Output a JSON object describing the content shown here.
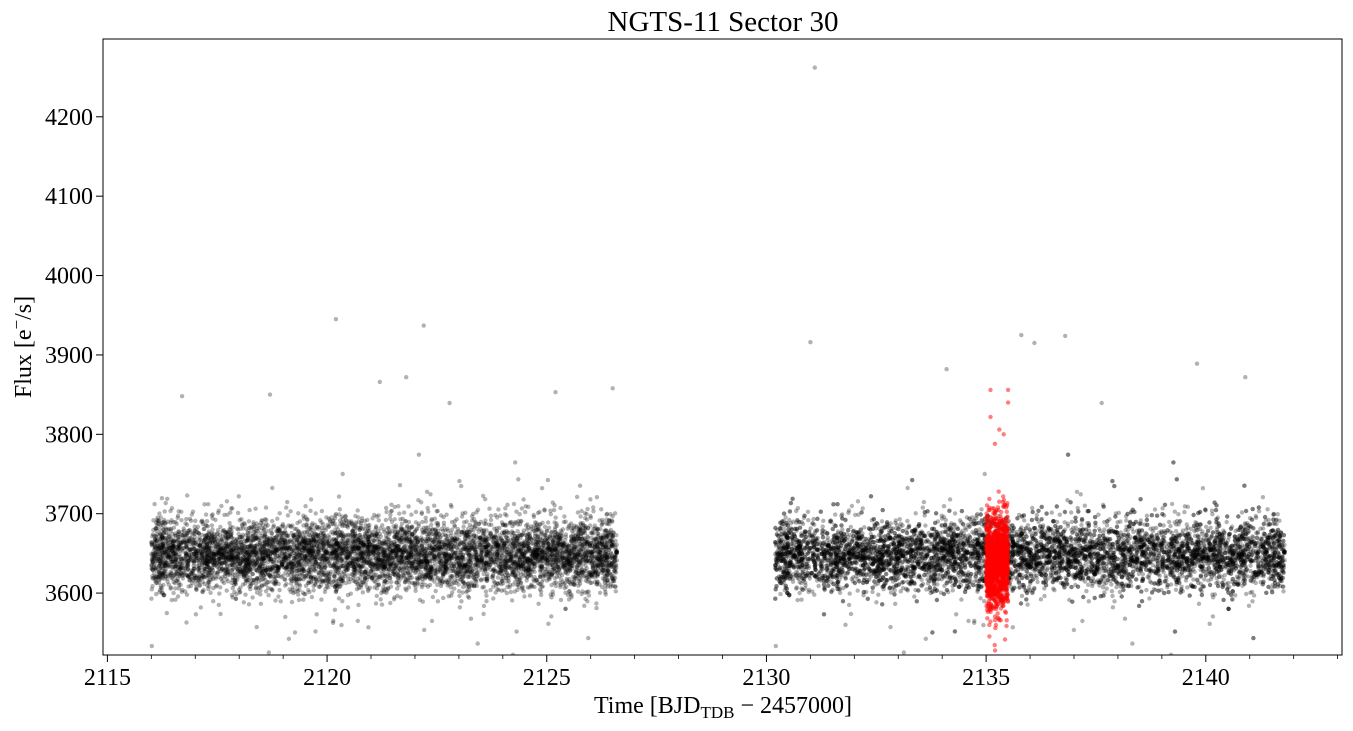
{
  "chart_data": {
    "type": "scatter",
    "title": "NGTS-11 Sector 30",
    "xlabel": {
      "prefix": "Time [BJD",
      "subscript": "TDB",
      "suffix": " − 2457000]"
    },
    "ylabel": {
      "prefix": "Flux [e",
      "superscript": "−",
      "suffix": "/s]"
    },
    "xlim": [
      2114.9,
      2143.1
    ],
    "ylim": [
      3522,
      4298
    ],
    "x_ticks": [
      2115,
      2120,
      2125,
      2130,
      2135,
      2140
    ],
    "x_tick_labels": [
      "2115",
      "2120",
      "2125",
      "2130",
      "2135",
      "2140"
    ],
    "x_minor_step": 1,
    "y_ticks": [
      3600,
      3700,
      3800,
      3900,
      4000,
      4100,
      4200
    ],
    "y_tick_labels": [
      "3600",
      "3700",
      "3800",
      "3900",
      "4000",
      "4100",
      "4200"
    ],
    "grid": false,
    "series": [
      {
        "color": "#000000",
        "opacity": 0.3,
        "segments": [
          [
            2116.0,
            2126.6
          ],
          [
            2130.2,
            2141.8
          ]
        ],
        "median_flux": 3648,
        "flux_scatter_sigma": 22
      },
      {
        "color": "#ff0000",
        "opacity": 0.5,
        "segments": [
          [
            2135.0,
            2135.5
          ]
        ],
        "median_flux": 3640,
        "flux_scatter_sigma": 28
      }
    ],
    "outliers": [
      {
        "x": 2131.1,
        "y": 4262,
        "series": 0
      },
      {
        "x": 2120.2,
        "y": 3945,
        "series": 0
      },
      {
        "x": 2122.2,
        "y": 3937,
        "series": 0
      },
      {
        "x": 2135.8,
        "y": 3925,
        "series": 0
      },
      {
        "x": 2136.8,
        "y": 3924,
        "series": 0
      },
      {
        "x": 2136.1,
        "y": 3915,
        "series": 0
      },
      {
        "x": 2131.0,
        "y": 3916,
        "series": 0
      },
      {
        "x": 2139.8,
        "y": 3889,
        "series": 0
      },
      {
        "x": 2134.1,
        "y": 3882,
        "series": 0
      },
      {
        "x": 2121.8,
        "y": 3872,
        "series": 0
      },
      {
        "x": 2140.9,
        "y": 3872,
        "series": 0
      },
      {
        "x": 2121.2,
        "y": 3866,
        "series": 0
      },
      {
        "x": 2126.5,
        "y": 3858,
        "series": 0
      },
      {
        "x": 2125.2,
        "y": 3853,
        "series": 0
      },
      {
        "x": 2116.7,
        "y": 3848,
        "series": 0
      },
      {
        "x": 2118.7,
        "y": 3850,
        "series": 0
      },
      {
        "x": 2135.5,
        "y": 3856,
        "series": 1
      },
      {
        "x": 2135.1,
        "y": 3856,
        "series": 1
      },
      {
        "x": 2135.5,
        "y": 3840,
        "series": 1
      },
      {
        "x": 2135.1,
        "y": 3822,
        "series": 1
      },
      {
        "x": 2135.4,
        "y": 3800,
        "series": 1
      },
      {
        "x": 2135.2,
        "y": 3788,
        "series": 1
      },
      {
        "x": 2135.3,
        "y": 3806,
        "series": 1
      },
      {
        "x": 2131.8,
        "y": 3560,
        "series": 0
      },
      {
        "x": 2120.7,
        "y": 3565,
        "series": 0
      },
      {
        "x": 2116.8,
        "y": 3563,
        "series": 0
      },
      {
        "x": 2134.6,
        "y": 3565,
        "series": 0
      },
      {
        "x": 2135.3,
        "y": 3566,
        "series": 1
      }
    ]
  }
}
